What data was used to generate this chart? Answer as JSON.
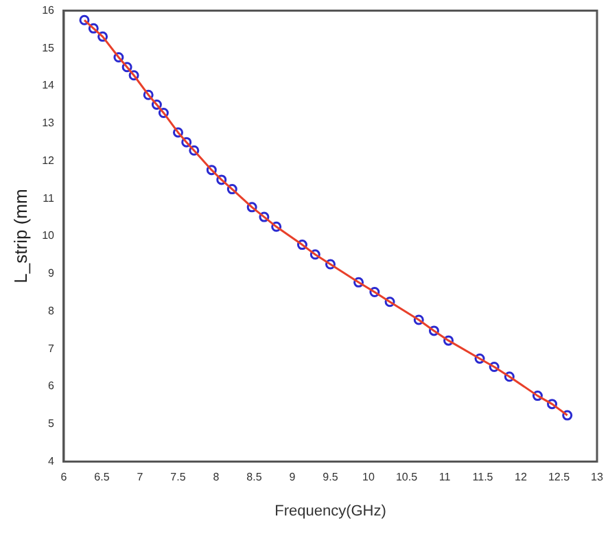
{
  "chart_data": {
    "type": "line",
    "xlabel": "Frequency(GHz)",
    "ylabel": "L_strip (mm",
    "xlim": [
      6,
      13
    ],
    "ylim": [
      4,
      16
    ],
    "xticks": [
      6,
      6.5,
      7,
      7.5,
      8,
      8.5,
      9,
      9.5,
      10,
      10.5,
      11,
      11.5,
      12,
      12.5,
      13
    ],
    "yticks": [
      4,
      5,
      6,
      7,
      8,
      9,
      10,
      11,
      12,
      13,
      14,
      15,
      16
    ],
    "grid": false,
    "legend": false,
    "x": [
      6.27,
      6.39,
      6.51,
      6.72,
      6.83,
      6.92,
      7.11,
      7.22,
      7.31,
      7.5,
      7.61,
      7.71,
      7.94,
      8.07,
      8.21,
      8.47,
      8.63,
      8.79,
      9.13,
      9.3,
      9.5,
      9.87,
      10.08,
      10.28,
      10.66,
      10.86,
      11.05,
      11.46,
      11.65,
      11.85,
      12.22,
      12.41,
      12.61
    ],
    "series": [
      {
        "color": "#e8402a",
        "marker": "none",
        "line_style": "solid",
        "values": [
          15.75,
          15.53,
          15.31,
          14.76,
          14.5,
          14.28,
          13.76,
          13.5,
          13.28,
          12.76,
          12.5,
          12.28,
          11.76,
          11.5,
          11.25,
          10.77,
          10.51,
          10.25,
          9.77,
          9.51,
          9.25,
          8.77,
          8.51,
          8.25,
          7.77,
          7.48,
          7.22,
          6.74,
          6.52,
          6.26,
          5.75,
          5.53,
          5.23
        ]
      },
      {
        "type": "scatter",
        "color": "#2a2ad0",
        "marker": "circle",
        "values": [
          15.75,
          15.53,
          15.31,
          14.76,
          14.5,
          14.28,
          13.76,
          13.5,
          13.28,
          12.76,
          12.5,
          12.28,
          11.76,
          11.5,
          11.25,
          10.77,
          10.51,
          10.25,
          9.77,
          9.51,
          9.25,
          8.77,
          8.51,
          8.25,
          7.77,
          7.48,
          7.22,
          6.74,
          6.52,
          6.26,
          5.75,
          5.53,
          5.23
        ]
      }
    ]
  }
}
